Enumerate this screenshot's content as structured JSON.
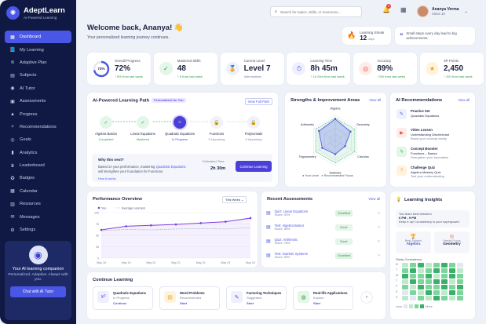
{
  "brand": {
    "name": "AdeptLearn",
    "tagline": "AI-Powered Learning"
  },
  "nav": [
    "Dashboard",
    "My Learning",
    "Adaptive Plan",
    "Subjects",
    "AI Tutor",
    "Assessments",
    "Progress",
    "Recommendations",
    "Goals",
    "Analytics",
    "Leaderboard",
    "Badges",
    "Calendar",
    "Resources",
    "Messages",
    "Settings"
  ],
  "nav_icons": [
    "grid-icon",
    "book-icon",
    "layers-icon",
    "folder-icon",
    "robot-icon",
    "clipboard-icon",
    "chart-icon",
    "lightbulb-icon",
    "target-icon",
    "analytics-icon",
    "trophy-icon",
    "badge-icon",
    "calendar-icon",
    "resources-icon",
    "message-icon",
    "gear-icon"
  ],
  "promo": {
    "title": "Your AI learning companion",
    "desc": "Personalized. Adaptive. Always with you.",
    "button": "Chat with AI Tutor"
  },
  "search": {
    "placeholder": "Search for topics, skills, or resources..."
  },
  "notifications": {
    "count": "3"
  },
  "user": {
    "name": "Ananya Verma",
    "class": "Class 10"
  },
  "welcome": {
    "title": "Welcome back, Ananya! 👋",
    "subtitle": "Your personalized learning journey continues."
  },
  "streak": {
    "label": "Learning Streak",
    "value": "12",
    "unit": "days"
  },
  "quote": "Small steps every day lead to big achievements.",
  "stats": [
    {
      "label": "Overall Progress",
      "value": "72%",
      "sub": "↑ 8% from last week",
      "ring": "72%",
      "progress": 0.72
    },
    {
      "label": "Mastered Skills",
      "value": "48",
      "sub": "↑ 6 from last week"
    },
    {
      "label": "Current Level",
      "value": "Level 7",
      "sub": "Intermediate"
    },
    {
      "label": "Learning Time",
      "value": "8h 45m",
      "sub": "↑ 1h 20m from last week"
    },
    {
      "label": "Accuracy",
      "value": "89%",
      "sub": "↑ 5% from last week"
    },
    {
      "label": "XP Points",
      "value": "2,450",
      "sub": "↑ 320 from last week"
    }
  ],
  "path": {
    "title": "AI-Powered Learning Path",
    "tag": "Personalized for You",
    "view": "View Full Path",
    "nodes": [
      {
        "name": "Algebra Basics",
        "status": "Completed"
      },
      {
        "name": "Linear Equations",
        "status": "Mastered"
      },
      {
        "name": "Quadratic Equations",
        "status": "In Progress"
      },
      {
        "name": "Functions",
        "status": "0 Upcoming"
      },
      {
        "name": "Polynomials",
        "status": "0 Upcoming"
      }
    ],
    "why": {
      "title": "Why this next?",
      "desc_a": "Based on your performance, mastering",
      "desc_hl": "Quadratic Equations",
      "desc_b": "will strengthen your foundation for Functions.",
      "how": "How it works"
    },
    "est_label": "Estimated Time",
    "est_value": "2h 30m",
    "continue": "Continue Learning"
  },
  "strengths": {
    "title": "Strengths & Improvement Areas",
    "view": "View all",
    "axes": [
      "Algebra",
      "Geometry",
      "Calculus",
      "Statistics",
      "Trigonometry",
      "Arithmetic"
    ],
    "levels": [
      0.85,
      0.7,
      0.45,
      0.55,
      0.6,
      0.75
    ],
    "legend": [
      "Your Level",
      "Recommended Focus"
    ]
  },
  "recs": {
    "title": "AI Recommendations",
    "view": "View all",
    "items": [
      {
        "title": "Practice Set",
        "sub1": "Quadratic Equations",
        "sub2": "",
        "icon": "pencil-icon"
      },
      {
        "title": "Video Lesson",
        "sub1": "Understanding Discriminant",
        "sub2": "Boost your concept clarity",
        "icon": "video-icon"
      },
      {
        "title": "Concept Booster",
        "sub1": "Functions – Basics",
        "sub2": "Strengthen your foundation",
        "icon": "bolt-icon"
      },
      {
        "title": "Challenge Quiz",
        "sub1": "Algebra Mastery Quiz",
        "sub2": "Test your understanding",
        "icon": "quiz-icon"
      }
    ]
  },
  "perf": {
    "title": "Performance Overview",
    "range": "This Week",
    "legend": [
      "You",
      "Average Learners"
    ]
  },
  "chart_data": {
    "type": "line",
    "x": [
      "May 18",
      "May 19",
      "May 20",
      "May 21",
      "May 22",
      "May 23",
      "May 24"
    ],
    "ylim": [
      0,
      100
    ],
    "yticks": [
      "0",
      "25",
      "50",
      "75",
      "100"
    ],
    "series": [
      {
        "name": "You",
        "values": [
          62,
          70,
          72,
          74,
          77,
          80,
          88
        ]
      },
      {
        "name": "Average Learners",
        "values": [
          60,
          63,
          62,
          64,
          65,
          64,
          67
        ]
      }
    ]
  },
  "assess": {
    "title": "Recent Assessments",
    "view": "View all",
    "items": [
      {
        "title": "Quiz: Linear Equations",
        "score": "Score: 92%",
        "status": "Excellent"
      },
      {
        "title": "Test: Algebra Basics",
        "score": "Score: 85%",
        "status": "Good"
      },
      {
        "title": "Quiz: Arithmetic",
        "score": "Score: 78%",
        "status": "Good"
      },
      {
        "title": "Test: Number Systems",
        "score": "Score: 95%",
        "status": "Excellent"
      }
    ]
  },
  "insights": {
    "title": "Learning Insights",
    "tip_a": "You learn best between",
    "tip_b": "6 PM - 9 PM",
    "tip_c": "Keep it up! Consistency is your superpower.",
    "best": "Best Subject",
    "best_val": "Algebra",
    "focus": "Needs Focus",
    "focus_val": "Geometry",
    "consistency": "Study Consistency",
    "days": [
      "M",
      "T",
      "W",
      "T",
      "F",
      "S",
      "S"
    ],
    "less": "Less",
    "more": "More"
  },
  "continue": {
    "title": "Continue Learning",
    "items": [
      {
        "title": "Quadratic Equations",
        "sub": "In Progress",
        "action": "Continue",
        "icon": "function-icon"
      },
      {
        "title": "Word Problems",
        "sub": "Recommended",
        "action": "Start",
        "icon": "doc-icon"
      },
      {
        "title": "Factoring Techniques",
        "sub": "Suggested",
        "action": "Start",
        "icon": "tool-icon"
      },
      {
        "title": "Real-life Applications",
        "sub": "Explore",
        "action": "Start",
        "icon": "globe-icon"
      }
    ]
  }
}
